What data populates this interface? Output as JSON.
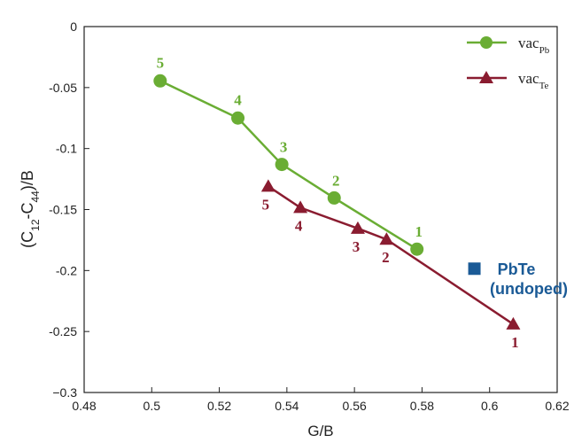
{
  "chart_data": {
    "type": "line",
    "xlabel": "G/B",
    "ylabel": {
      "main": "(C",
      "sub1": "12",
      "mid": "-C",
      "sub2": "44",
      "end": ")/B"
    },
    "xlim": [
      0.48,
      0.62
    ],
    "ylim": [
      -0.3,
      0
    ],
    "xticks": [
      {
        "value": 0.48,
        "label": "0.48"
      },
      {
        "value": 0.5,
        "label": "0.5"
      },
      {
        "value": 0.52,
        "label": "0.52"
      },
      {
        "value": 0.54,
        "label": "0.54"
      },
      {
        "value": 0.56,
        "label": "0.56"
      },
      {
        "value": 0.58,
        "label": "0.58"
      },
      {
        "value": 0.6,
        "label": "0.6"
      },
      {
        "value": 0.62,
        "label": "0.62"
      }
    ],
    "yticks": [
      {
        "value": 0,
        "label": "0"
      },
      {
        "value": -0.05,
        "label": "-0.05"
      },
      {
        "value": -0.1,
        "label": "-0.1"
      },
      {
        "value": -0.15,
        "label": "-0.15"
      },
      {
        "value": -0.2,
        "label": "-0.2"
      },
      {
        "value": -0.25,
        "label": "-0.25"
      },
      {
        "value": -0.3,
        "label": "−0.3"
      }
    ],
    "series": [
      {
        "name": "vac_Pb",
        "legend_main": "vac",
        "legend_sub": "Pb",
        "marker": "circle",
        "color": "#6aad34",
        "points": [
          {
            "x": 0.5025,
            "y": -0.0445,
            "label": "5"
          },
          {
            "x": 0.5255,
            "y": -0.075,
            "label": "4"
          },
          {
            "x": 0.5385,
            "y": -0.113,
            "label": "3"
          },
          {
            "x": 0.554,
            "y": -0.1405,
            "label": "2"
          },
          {
            "x": 0.5785,
            "y": -0.1825,
            "label": "1"
          }
        ]
      },
      {
        "name": "vac_Te",
        "legend_main": "vac",
        "legend_sub": "Te",
        "marker": "triangle",
        "color": "#8a1c30",
        "points": [
          {
            "x": 0.5345,
            "y": -0.131,
            "label": "5"
          },
          {
            "x": 0.544,
            "y": -0.1485,
            "label": "4"
          },
          {
            "x": 0.561,
            "y": -0.1655,
            "label": "3"
          },
          {
            "x": 0.5695,
            "y": -0.1745,
            "label": "2"
          },
          {
            "x": 0.607,
            "y": -0.244,
            "label": "1"
          }
        ]
      }
    ],
    "reference_point": {
      "name": "PbTe (undoped)",
      "x": 0.5955,
      "y": -0.1985,
      "marker": "square",
      "color": "#1a5a96",
      "label_line1": "PbTe",
      "label_line2": "(undoped)"
    },
    "legend_position": "top-right"
  }
}
